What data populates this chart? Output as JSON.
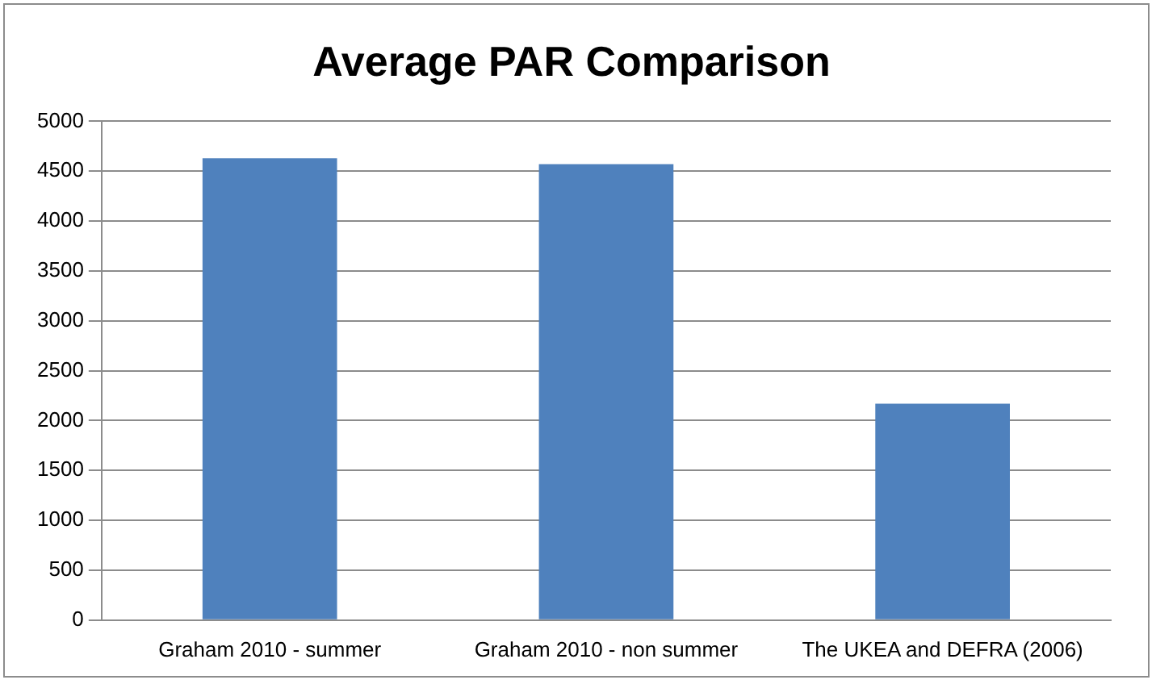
{
  "chart_data": {
    "type": "bar",
    "title": "Average PAR Comparison",
    "categories": [
      "Graham 2010 - summer",
      "Graham 2010 - non summer",
      "The UKEA and DEFRA (2006)"
    ],
    "values": [
      4630,
      4570,
      2170
    ],
    "color": "#4f81bd",
    "ylim": [
      0,
      5000
    ],
    "yticks": [
      0,
      500,
      1000,
      1500,
      2000,
      2500,
      3000,
      3500,
      4000,
      4500,
      5000
    ],
    "grid": "y"
  }
}
